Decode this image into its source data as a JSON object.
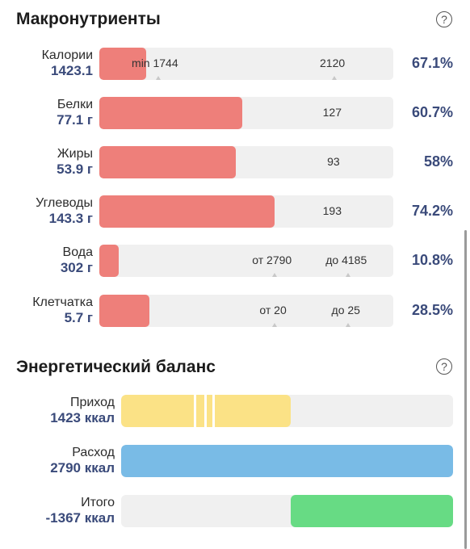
{
  "macros": {
    "title": "Макронутриенты",
    "help": "?",
    "rows": [
      {
        "name": "Калории",
        "value": "1423.1",
        "percent": "67.1%",
        "fill_fraction": 0.16,
        "markers": [
          {
            "text": "min 1744",
            "at": 0.11,
            "tick_at": 0.2
          },
          {
            "text": "2120",
            "at": 0.75,
            "tick_at": 0.8
          }
        ]
      },
      {
        "name": "Белки",
        "value": "77.1 г",
        "percent": "60.7%",
        "fill_fraction": 0.485,
        "markers": [
          {
            "text": "127",
            "at": 0.76,
            "tick_at": null
          }
        ]
      },
      {
        "name": "Жиры",
        "value": "53.9 г",
        "percent": "58%",
        "fill_fraction": 0.465,
        "markers": [
          {
            "text": "93",
            "at": 0.775,
            "tick_at": null
          }
        ]
      },
      {
        "name": "Углеводы",
        "value": "143.3 г",
        "percent": "74.2%",
        "fill_fraction": 0.595,
        "markers": [
          {
            "text": "193",
            "at": 0.76,
            "tick_at": null
          }
        ]
      },
      {
        "name": "Вода",
        "value": "302 г",
        "percent": "10.8%",
        "fill_fraction": 0.065,
        "markers": [
          {
            "text": "от 2790",
            "at": 0.52,
            "tick_at": 0.595
          },
          {
            "text": "до 4185",
            "at": 0.77,
            "tick_at": 0.845
          }
        ]
      },
      {
        "name": "Клетчатка",
        "value": "5.7 г",
        "percent": "28.5%",
        "fill_fraction": 0.17,
        "markers": [
          {
            "text": "от 20",
            "at": 0.545,
            "tick_at": 0.595
          },
          {
            "text": "до 25",
            "at": 0.79,
            "tick_at": 0.845
          }
        ]
      }
    ]
  },
  "energy": {
    "title": "Энергетический баланс",
    "help": "?",
    "rows": [
      {
        "name": "Приход",
        "value": "1423 ккал",
        "color": "#fbe286",
        "fill_from": 0.0,
        "fill_to": 0.51,
        "dividers": [
          0.22,
          0.25,
          0.275
        ]
      },
      {
        "name": "Расход",
        "value": "2790 ккал",
        "color": "#79bbe6",
        "fill_from": 0.0,
        "fill_to": 1.0,
        "dividers": []
      },
      {
        "name": "Итого",
        "value": "-1367 ккал",
        "color": "#67db84",
        "fill_from": 0.51,
        "fill_to": 1.0,
        "dividers": []
      }
    ]
  }
}
